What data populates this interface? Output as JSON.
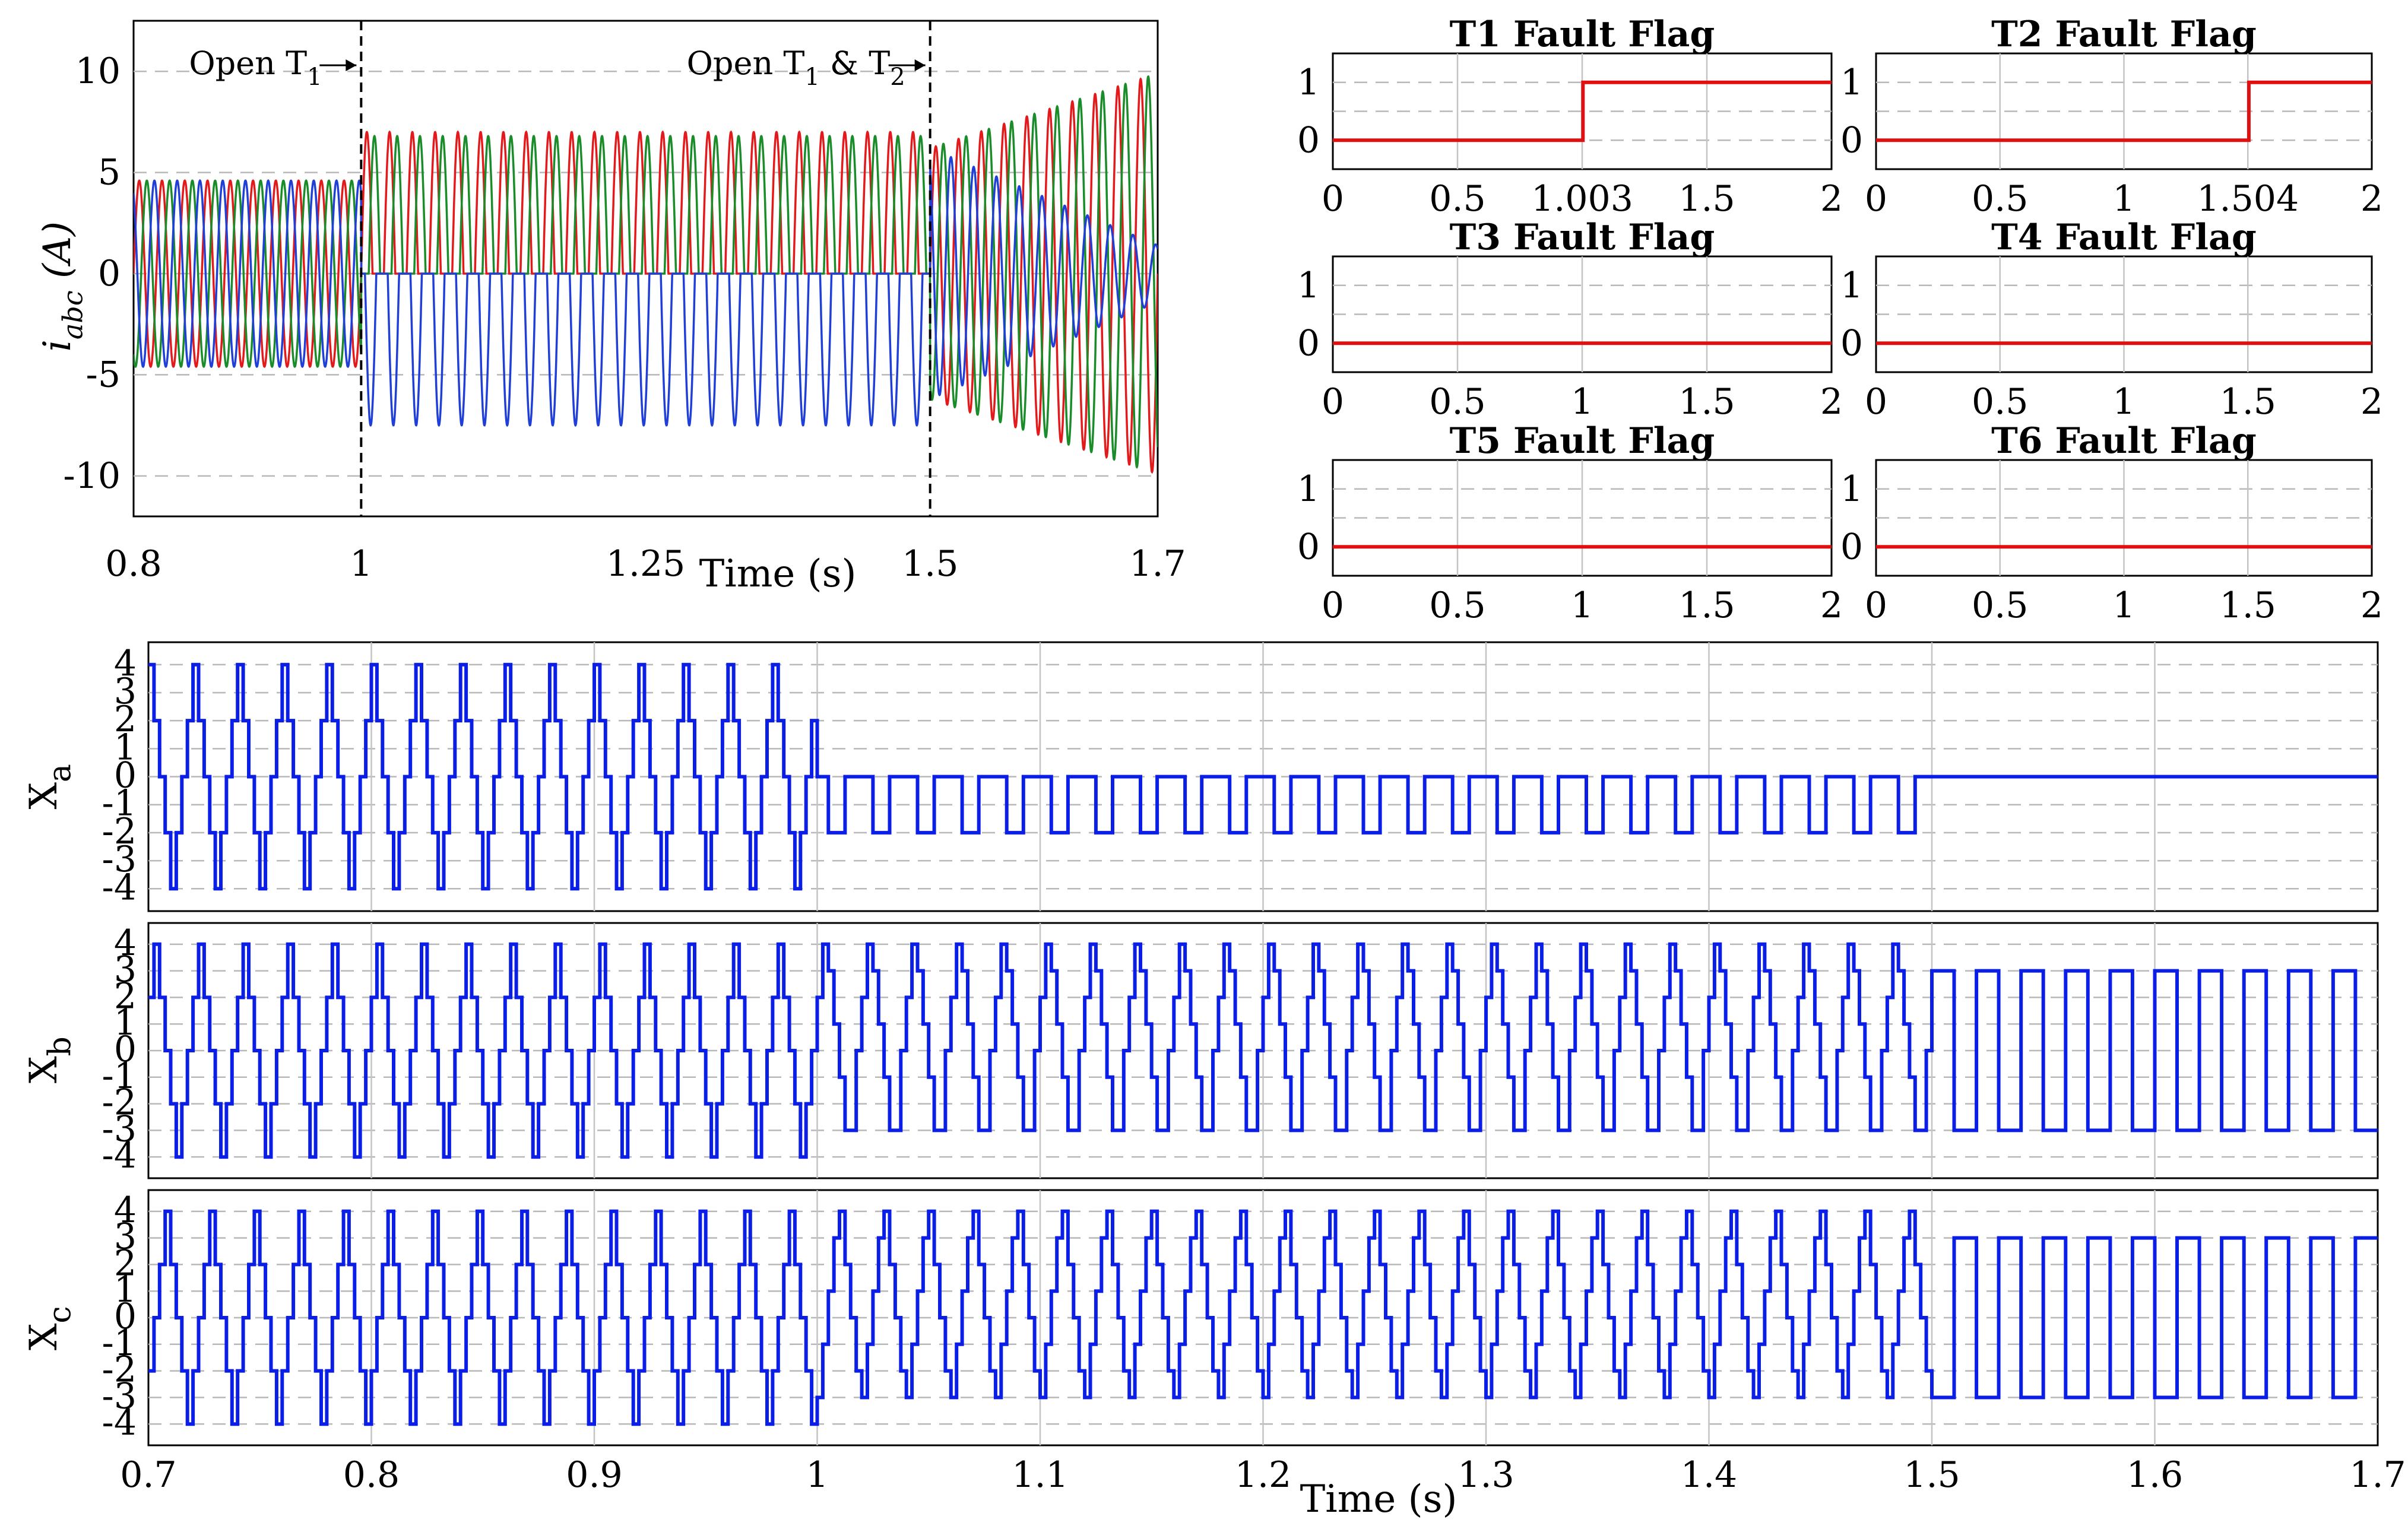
{
  "chart_data": [
    {
      "id": "iabc",
      "type": "line",
      "ylabel_main": "i",
      "ylabel_sub": "abc",
      "ylabel_unit": " (A)",
      "xlabel": "Time (s)",
      "xlim": [
        0.8,
        1.7
      ],
      "ylim": [
        -12,
        12.5
      ],
      "xticks": [
        0.8,
        1,
        1.25,
        1.5,
        1.7
      ],
      "xtick_labels": [
        "0.8",
        "1",
        "1.25",
        "1.5",
        "1.7"
      ],
      "yticks": [
        10,
        5,
        0,
        -5,
        -10
      ],
      "ytick_labels": [
        "10",
        "5",
        "0",
        "-5",
        "-10"
      ],
      "grid": true,
      "frequency_hz": 50,
      "events": [
        {
          "x": 1.0,
          "text_main": "Open T",
          "text_sub": "1",
          "text_rest": ""
        },
        {
          "x": 1.5,
          "text_main": "Open T",
          "text_sub": "1",
          "text_rest": " & T",
          "text_sub2": "2"
        }
      ],
      "series": [
        {
          "color": "#e31a1c",
          "amplitude": [
            {
              "t": [
                0.8,
                1.0
              ],
              "amp": 4.6
            },
            {
              "t": [
                1.0,
                1.5
              ],
              "amp_pos": 7.0,
              "amp_neg": 0
            },
            {
              "t": [
                1.5,
                1.7
              ],
              "amp": 8.5
            }
          ]
        },
        {
          "color": "#1a8c2a",
          "amplitude": [
            {
              "t": [
                0.8,
                1.0
              ],
              "amp": 4.6
            },
            {
              "t": [
                1.0,
                1.5
              ],
              "amp_pos": 6.8,
              "amp_neg": 0
            },
            {
              "t": [
                1.5,
                1.7
              ],
              "amp": 8.5
            }
          ]
        },
        {
          "color": "#1f3fd6",
          "amplitude": [
            {
              "t": [
                0.8,
                1.0
              ],
              "amp": 4.6
            },
            {
              "t": [
                1.0,
                1.5
              ],
              "amp_pos": 0,
              "amp_neg": 7.5
            },
            {
              "t": [
                1.5,
                1.7
              ],
              "amp": 0
            }
          ]
        }
      ]
    },
    {
      "id": "flags",
      "type": "line",
      "xlim": [
        0,
        2
      ],
      "ylim": [
        -0.5,
        1.5
      ],
      "yticks": [
        1,
        0
      ],
      "ytick_labels": [
        "1",
        "0"
      ],
      "xticks": [
        0,
        0.5,
        1,
        1.5,
        2
      ],
      "grid": true,
      "line_color": "#e01010",
      "panels": [
        {
          "title": "T1 Fault Flag",
          "step_at": 1.003,
          "xtick_labels": [
            "0",
            "0.5",
            "1.003",
            "1.5",
            "2"
          ]
        },
        {
          "title": "T2 Fault Flag",
          "step_at": 1.504,
          "xtick_labels": [
            "0",
            "0.5",
            "1",
            "1.504",
            "2"
          ]
        },
        {
          "title": "T3 Fault Flag",
          "step_at": null,
          "xtick_labels": [
            "0",
            "0.5",
            "1",
            "1.5",
            "2"
          ]
        },
        {
          "title": "T4 Fault Flag",
          "step_at": null,
          "xtick_labels": [
            "0",
            "0.5",
            "1",
            "1.5",
            "2"
          ]
        },
        {
          "title": "T5 Fault Flag",
          "step_at": null,
          "xtick_labels": [
            "0",
            "0.5",
            "1",
            "1.5",
            "2"
          ]
        },
        {
          "title": "T6 Fault Flag",
          "step_at": null,
          "xtick_labels": [
            "0",
            "0.5",
            "1",
            "1.5",
            "2"
          ]
        }
      ]
    },
    {
      "id": "switching_states",
      "type": "line",
      "xlim": [
        0.7,
        1.7
      ],
      "xticks": [
        0.7,
        0.8,
        0.9,
        1,
        1.1,
        1.2,
        1.3,
        1.4,
        1.5,
        1.6,
        1.7
      ],
      "xtick_labels": [
        "0.7",
        "0.8",
        "0.9",
        "1",
        "1.1",
        "1.2",
        "1.3",
        "1.4",
        "1.5",
        "1.6",
        "1.7"
      ],
      "xlabel": "Time (s)",
      "ylim": [
        -4.8,
        4.8
      ],
      "yticks": [
        4,
        3,
        2,
        1,
        0,
        -1,
        -2,
        -3,
        -4
      ],
      "ytick_labels": [
        "4",
        "3",
        "2",
        "1",
        "0",
        "-1",
        "-2",
        "-3",
        "-4"
      ],
      "grid": true,
      "frequency_hz": 50,
      "line_color": "#0a1ee6",
      "panels": [
        {
          "label": "X",
          "sub": "a",
          "segments": [
            {
              "t": [
                0.7,
                1.0
              ],
              "levels": [
                4,
                2,
                0,
                -2,
                -4,
                -2,
                0,
                2
              ]
            },
            {
              "t": [
                1.0,
                1.5
              ],
              "levels": [
                0,
                0,
                -2,
                -2,
                -2,
                0,
                0,
                0
              ]
            },
            {
              "t": [
                1.5,
                1.7
              ],
              "levels": [
                0
              ]
            }
          ]
        },
        {
          "label": "X",
          "sub": "b",
          "segments": [
            {
              "t": [
                0.7,
                1.0
              ],
              "levels": [
                2,
                4,
                2,
                0,
                -2,
                -4,
                -2,
                0
              ]
            },
            {
              "t": [
                1.0,
                1.5
              ],
              "levels": [
                2,
                4,
                3,
                1,
                -1,
                -3,
                -3,
                0
              ]
            },
            {
              "t": [
                1.5,
                1.7
              ],
              "levels": [
                3,
                3,
                3,
                3,
                -3,
                -3,
                -3,
                -3
              ]
            }
          ]
        },
        {
          "label": "X",
          "sub": "c",
          "segments": [
            {
              "t": [
                0.7,
                1.0
              ],
              "levels": [
                -2,
                0,
                2,
                4,
                2,
                0,
                -2,
                -4
              ]
            },
            {
              "t": [
                1.0,
                1.5
              ],
              "levels": [
                -3,
                -1,
                1,
                3,
                4,
                2,
                0,
                -2
              ]
            },
            {
              "t": [
                1.5,
                1.7
              ],
              "levels": [
                -3,
                -3,
                -3,
                -3,
                3,
                3,
                3,
                3
              ]
            }
          ]
        }
      ]
    }
  ]
}
